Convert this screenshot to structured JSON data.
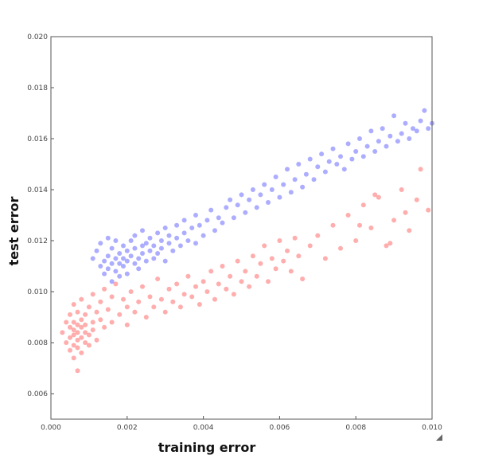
{
  "chart_data": {
    "type": "scatter",
    "title": "",
    "xlabel": "training error",
    "ylabel": "test error",
    "xlim": [
      0.0,
      0.01
    ],
    "ylim": [
      0.005,
      0.02
    ],
    "x_ticks": [
      "0.000",
      "0.002",
      "0.004",
      "0.006",
      "0.008",
      "0.010"
    ],
    "y_ticks": [
      "0.006",
      "0.008",
      "0.010",
      "0.012",
      "0.014",
      "0.016",
      "0.018",
      "0.020"
    ],
    "grid": false,
    "legend": "none",
    "series": [
      {
        "color": "#0000ff",
        "points": [
          [
            0.0011,
            0.0113
          ],
          [
            0.0012,
            0.0116
          ],
          [
            0.0013,
            0.011
          ],
          [
            0.0013,
            0.0119
          ],
          [
            0.0014,
            0.0112
          ],
          [
            0.0014,
            0.0107
          ],
          [
            0.0015,
            0.0114
          ],
          [
            0.0015,
            0.0121
          ],
          [
            0.0015,
            0.0109
          ],
          [
            0.0016,
            0.0111
          ],
          [
            0.0016,
            0.0117
          ],
          [
            0.0016,
            0.0104
          ],
          [
            0.0017,
            0.0113
          ],
          [
            0.0017,
            0.0108
          ],
          [
            0.0017,
            0.012
          ],
          [
            0.0018,
            0.0115
          ],
          [
            0.0018,
            0.0111
          ],
          [
            0.0018,
            0.0106
          ],
          [
            0.0019,
            0.0113
          ],
          [
            0.0019,
            0.0118
          ],
          [
            0.0019,
            0.011
          ],
          [
            0.002,
            0.0116
          ],
          [
            0.002,
            0.0112
          ],
          [
            0.002,
            0.0107
          ],
          [
            0.0021,
            0.012
          ],
          [
            0.0021,
            0.0114
          ],
          [
            0.0022,
            0.0111
          ],
          [
            0.0022,
            0.0117
          ],
          [
            0.0022,
            0.0122
          ],
          [
            0.0023,
            0.0113
          ],
          [
            0.0023,
            0.0109
          ],
          [
            0.0024,
            0.0118
          ],
          [
            0.0024,
            0.0115
          ],
          [
            0.0024,
            0.0124
          ],
          [
            0.0025,
            0.0112
          ],
          [
            0.0025,
            0.0119
          ],
          [
            0.0026,
            0.0116
          ],
          [
            0.0026,
            0.0121
          ],
          [
            0.0027,
            0.0113
          ],
          [
            0.0027,
            0.0118
          ],
          [
            0.0028,
            0.0123
          ],
          [
            0.0028,
            0.0115
          ],
          [
            0.0029,
            0.012
          ],
          [
            0.0029,
            0.0117
          ],
          [
            0.003,
            0.0125
          ],
          [
            0.003,
            0.0112
          ],
          [
            0.0031,
            0.0119
          ],
          [
            0.0031,
            0.0122
          ],
          [
            0.0032,
            0.0116
          ],
          [
            0.0033,
            0.0121
          ],
          [
            0.0033,
            0.0126
          ],
          [
            0.0034,
            0.0118
          ],
          [
            0.0035,
            0.0123
          ],
          [
            0.0035,
            0.0128
          ],
          [
            0.0036,
            0.012
          ],
          [
            0.0037,
            0.0125
          ],
          [
            0.0038,
            0.0119
          ],
          [
            0.0038,
            0.013
          ],
          [
            0.0039,
            0.0126
          ],
          [
            0.004,
            0.0122
          ],
          [
            0.0041,
            0.0128
          ],
          [
            0.0042,
            0.0132
          ],
          [
            0.0043,
            0.0124
          ],
          [
            0.0044,
            0.0129
          ],
          [
            0.0045,
            0.0127
          ],
          [
            0.0046,
            0.0133
          ],
          [
            0.0047,
            0.0136
          ],
          [
            0.0048,
            0.0129
          ],
          [
            0.0049,
            0.0134
          ],
          [
            0.005,
            0.0138
          ],
          [
            0.0051,
            0.0131
          ],
          [
            0.0052,
            0.0136
          ],
          [
            0.0053,
            0.014
          ],
          [
            0.0054,
            0.0133
          ],
          [
            0.0055,
            0.0138
          ],
          [
            0.0056,
            0.0142
          ],
          [
            0.0057,
            0.0135
          ],
          [
            0.0058,
            0.014
          ],
          [
            0.0059,
            0.0145
          ],
          [
            0.006,
            0.0137
          ],
          [
            0.0061,
            0.0142
          ],
          [
            0.0062,
            0.0148
          ],
          [
            0.0063,
            0.0139
          ],
          [
            0.0064,
            0.0144
          ],
          [
            0.0065,
            0.015
          ],
          [
            0.0066,
            0.0141
          ],
          [
            0.0067,
            0.0146
          ],
          [
            0.0068,
            0.0152
          ],
          [
            0.0069,
            0.0144
          ],
          [
            0.007,
            0.0149
          ],
          [
            0.0071,
            0.0154
          ],
          [
            0.0072,
            0.0147
          ],
          [
            0.0073,
            0.0151
          ],
          [
            0.0074,
            0.0156
          ],
          [
            0.0075,
            0.015
          ],
          [
            0.0076,
            0.0153
          ],
          [
            0.0077,
            0.0148
          ],
          [
            0.0078,
            0.0158
          ],
          [
            0.0079,
            0.0152
          ],
          [
            0.008,
            0.0155
          ],
          [
            0.0081,
            0.016
          ],
          [
            0.0082,
            0.0153
          ],
          [
            0.0083,
            0.0157
          ],
          [
            0.0084,
            0.0163
          ],
          [
            0.0085,
            0.0155
          ],
          [
            0.0086,
            0.0159
          ],
          [
            0.0087,
            0.0164
          ],
          [
            0.0088,
            0.0157
          ],
          [
            0.0089,
            0.0161
          ],
          [
            0.009,
            0.0169
          ],
          [
            0.0091,
            0.0159
          ],
          [
            0.0092,
            0.0162
          ],
          [
            0.0093,
            0.0166
          ],
          [
            0.0094,
            0.016
          ],
          [
            0.0095,
            0.0164
          ],
          [
            0.0096,
            0.0163
          ],
          [
            0.0097,
            0.0167
          ],
          [
            0.0098,
            0.0171
          ],
          [
            0.0099,
            0.0164
          ],
          [
            0.01,
            0.0166
          ]
        ]
      },
      {
        "color": "#ff0000",
        "points": [
          [
            0.0003,
            0.0084
          ],
          [
            0.0004,
            0.008
          ],
          [
            0.0004,
            0.0088
          ],
          [
            0.0005,
            0.0082
          ],
          [
            0.0005,
            0.0086
          ],
          [
            0.0005,
            0.0077
          ],
          [
            0.0005,
            0.0091
          ],
          [
            0.0006,
            0.0083
          ],
          [
            0.0006,
            0.0079
          ],
          [
            0.0006,
            0.0088
          ],
          [
            0.0006,
            0.0085
          ],
          [
            0.0006,
            0.0074
          ],
          [
            0.0006,
            0.0095
          ],
          [
            0.0007,
            0.0081
          ],
          [
            0.0007,
            0.0087
          ],
          [
            0.0007,
            0.0084
          ],
          [
            0.0007,
            0.0078
          ],
          [
            0.0007,
            0.0092
          ],
          [
            0.0007,
            0.0069
          ],
          [
            0.0008,
            0.0086
          ],
          [
            0.0008,
            0.0082
          ],
          [
            0.0008,
            0.0089
          ],
          [
            0.0008,
            0.0076
          ],
          [
            0.0008,
            0.0097
          ],
          [
            0.0009,
            0.0084
          ],
          [
            0.0009,
            0.008
          ],
          [
            0.0009,
            0.0091
          ],
          [
            0.0009,
            0.0087
          ],
          [
            0.001,
            0.0083
          ],
          [
            0.001,
            0.0094
          ],
          [
            0.001,
            0.0079
          ],
          [
            0.0011,
            0.0088
          ],
          [
            0.0011,
            0.0099
          ],
          [
            0.0011,
            0.0085
          ],
          [
            0.0012,
            0.0092
          ],
          [
            0.0012,
            0.0081
          ],
          [
            0.0013,
            0.0096
          ],
          [
            0.0013,
            0.0089
          ],
          [
            0.0014,
            0.0101
          ],
          [
            0.0014,
            0.0086
          ],
          [
            0.0015,
            0.0093
          ],
          [
            0.0016,
            0.0098
          ],
          [
            0.0016,
            0.0088
          ],
          [
            0.0017,
            0.0103
          ],
          [
            0.0018,
            0.0091
          ],
          [
            0.0019,
            0.0097
          ],
          [
            0.002,
            0.0094
          ],
          [
            0.002,
            0.0087
          ],
          [
            0.0021,
            0.01
          ],
          [
            0.0022,
            0.0092
          ],
          [
            0.0023,
            0.0096
          ],
          [
            0.0024,
            0.0102
          ],
          [
            0.0025,
            0.009
          ],
          [
            0.0026,
            0.0098
          ],
          [
            0.0027,
            0.0094
          ],
          [
            0.0028,
            0.0105
          ],
          [
            0.0029,
            0.0097
          ],
          [
            0.003,
            0.0092
          ],
          [
            0.0031,
            0.0101
          ],
          [
            0.0032,
            0.0096
          ],
          [
            0.0033,
            0.0103
          ],
          [
            0.0034,
            0.0094
          ],
          [
            0.0035,
            0.0099
          ],
          [
            0.0036,
            0.0106
          ],
          [
            0.0037,
            0.0098
          ],
          [
            0.0038,
            0.0102
          ],
          [
            0.0039,
            0.0095
          ],
          [
            0.004,
            0.0104
          ],
          [
            0.0041,
            0.01
          ],
          [
            0.0042,
            0.0108
          ],
          [
            0.0043,
            0.0097
          ],
          [
            0.0044,
            0.0103
          ],
          [
            0.0045,
            0.011
          ],
          [
            0.0046,
            0.0101
          ],
          [
            0.0047,
            0.0106
          ],
          [
            0.0048,
            0.0099
          ],
          [
            0.0049,
            0.0112
          ],
          [
            0.005,
            0.0104
          ],
          [
            0.0051,
            0.0108
          ],
          [
            0.0052,
            0.0102
          ],
          [
            0.0053,
            0.0114
          ],
          [
            0.0054,
            0.0106
          ],
          [
            0.0055,
            0.0111
          ],
          [
            0.0056,
            0.0118
          ],
          [
            0.0057,
            0.0104
          ],
          [
            0.0058,
            0.0113
          ],
          [
            0.0059,
            0.0109
          ],
          [
            0.006,
            0.012
          ],
          [
            0.0061,
            0.0112
          ],
          [
            0.0062,
            0.0116
          ],
          [
            0.0063,
            0.0108
          ],
          [
            0.0064,
            0.0121
          ],
          [
            0.0065,
            0.0114
          ],
          [
            0.0066,
            0.0105
          ],
          [
            0.0068,
            0.0118
          ],
          [
            0.007,
            0.0122
          ],
          [
            0.0072,
            0.0113
          ],
          [
            0.0074,
            0.0126
          ],
          [
            0.0076,
            0.0117
          ],
          [
            0.0078,
            0.013
          ],
          [
            0.008,
            0.012
          ],
          [
            0.0082,
            0.0134
          ],
          [
            0.0084,
            0.0125
          ],
          [
            0.0086,
            0.0137
          ],
          [
            0.0088,
            0.0118
          ],
          [
            0.009,
            0.0128
          ],
          [
            0.0092,
            0.014
          ],
          [
            0.0094,
            0.0124
          ],
          [
            0.0096,
            0.0136
          ],
          [
            0.0097,
            0.0148
          ],
          [
            0.0099,
            0.0132
          ],
          [
            0.0093,
            0.0131
          ],
          [
            0.0089,
            0.0119
          ],
          [
            0.0085,
            0.0138
          ],
          [
            0.0081,
            0.0126
          ]
        ]
      }
    ]
  }
}
